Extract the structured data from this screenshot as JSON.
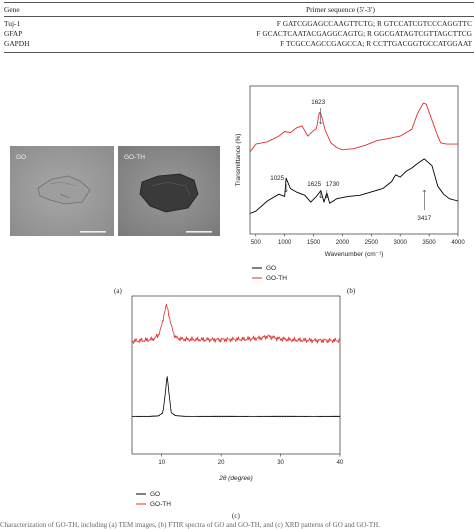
{
  "table": {
    "header": {
      "gene": "Gene",
      "primer": "Primer sequence (5′-3′)"
    },
    "rows": [
      {
        "gene": "Tuj-1",
        "primer": "F GATCGGAGCCAAGTTCTG; R GTCCATCGTCCCAGGTTC"
      },
      {
        "gene": "GFAP",
        "primer": "F GCACTCAATACGAGGCAGTG; R GGCGATAGTCGTTAGCTTCG"
      },
      {
        "gene": "GAPDH",
        "primer": "F TCGCCAGCCGAGCCA; R CCTTGACGGTGCCATGGAAT"
      }
    ]
  },
  "panel_a": {
    "images": [
      {
        "label": "GO"
      },
      {
        "label": "GO-TH"
      }
    ],
    "caption": "(a)"
  },
  "panel_b": {
    "caption": "(b)"
  },
  "panel_c": {
    "caption": "(c)"
  },
  "footer_text": "Characterization of GO-TH, including (a) TEM images, (b) FTIR spectra of GO and GO-TH, and (c) XRD patterns of GO and GO-TH.",
  "chart_data": [
    {
      "type": "line",
      "xlabel": "Wavenumber (cm⁻¹)",
      "ylabel": "Transmittance (%)",
      "xlim": [
        400,
        4000
      ],
      "x_ticks": [
        500,
        1000,
        1500,
        2000,
        2500,
        3000,
        3500,
        4000
      ],
      "y_ticks_visible": false,
      "legend_position": "below",
      "series": [
        {
          "name": "GO",
          "color": "#000000",
          "x": [
            400,
            500,
            700,
            900,
            1000,
            1025,
            1100,
            1200,
            1350,
            1450,
            1550,
            1625,
            1680,
            1730,
            1780,
            1900,
            2100,
            2300,
            2500,
            2700,
            2850,
            2920,
            3000,
            3100,
            3200,
            3300,
            3417,
            3550,
            3650,
            3750,
            3850,
            4000
          ],
          "y": [
            18,
            20,
            29,
            35,
            33,
            49,
            40,
            37,
            34,
            28,
            33,
            38,
            28,
            36,
            27,
            31,
            33,
            34,
            37,
            40,
            46,
            52,
            50,
            55,
            58,
            62,
            66,
            60,
            42,
            35,
            31,
            29
          ]
        },
        {
          "name": "GO-TH",
          "color": "#e03030",
          "x": [
            400,
            500,
            700,
            900,
            1000,
            1100,
            1200,
            1300,
            1400,
            1500,
            1550,
            1600,
            1623,
            1650,
            1700,
            1800,
            1900,
            2000,
            2200,
            2400,
            2600,
            2800,
            3000,
            3200,
            3300,
            3400,
            3450,
            3550,
            3650,
            3700,
            3800,
            3900,
            4000
          ],
          "y": [
            72,
            79,
            81,
            86,
            90,
            89,
            93,
            95,
            86,
            91,
            95,
            104,
            108,
            99,
            94,
            80,
            76,
            74,
            75,
            78,
            82,
            84,
            86,
            92,
            106,
            115,
            114,
            100,
            86,
            80,
            79,
            79,
            79
          ]
        }
      ],
      "annotations": [
        {
          "text": "1623",
          "x": 1623
        },
        {
          "text": "1025",
          "x": 1025
        },
        {
          "text": "1625",
          "x": 1625
        },
        {
          "text": "1730",
          "x": 1730
        },
        {
          "text": "3417",
          "x": 3417
        }
      ]
    },
    {
      "type": "line",
      "xlabel": "2θ (degree)",
      "ylabel": "",
      "xlim": [
        5,
        40
      ],
      "x_ticks": [
        10,
        20,
        30,
        40
      ],
      "y_ticks_visible": false,
      "legend_position": "below",
      "series": [
        {
          "name": "GO",
          "color": "#000000",
          "x": [
            5,
            8,
            9.5,
            10.2,
            10.6,
            10.9,
            11.2,
            11.6,
            12.3,
            14,
            20,
            30,
            40
          ],
          "y": [
            20,
            20,
            20.3,
            22,
            32,
            42,
            33,
            22,
            20.4,
            20,
            20,
            20,
            20
          ]
        },
        {
          "name": "GO-TH",
          "color": "#e03030",
          "x": [
            5,
            7,
            8.5,
            9.4,
            10,
            10.5,
            10.8,
            11.1,
            11.6,
            12.3,
            13.5,
            16,
            20,
            24,
            26.5,
            28,
            29.5,
            32,
            36,
            40
          ],
          "y": [
            60,
            60.4,
            61,
            63,
            68,
            76,
            79,
            76,
            68,
            62,
            61,
            60.8,
            60.8,
            61,
            61.6,
            62.6,
            61.4,
            60.6,
            60.4,
            60.3
          ]
        }
      ]
    }
  ]
}
